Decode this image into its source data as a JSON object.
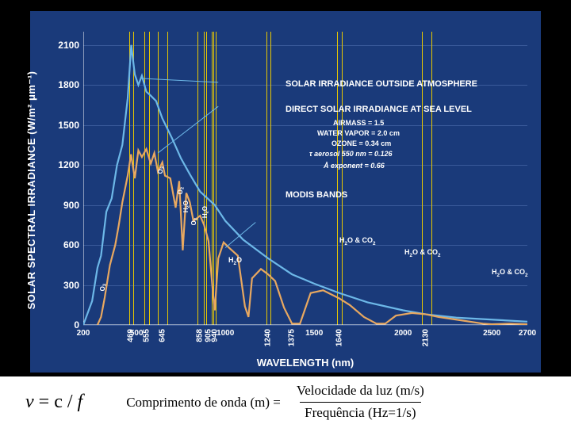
{
  "chart": {
    "type": "line",
    "background_color": "#1a3a7a",
    "page_background": "#000000",
    "grid_color": "#3a5a9a",
    "yaxis": {
      "label": "SOLAR SPECTRAL IRRADIANCE (W/m² μm⁻¹)",
      "ticks": [
        0,
        300,
        600,
        900,
        1200,
        1500,
        1800,
        2100
      ],
      "ylim": [
        0,
        2200
      ]
    },
    "xaxis": {
      "label": "WAVELENGTH (nm)",
      "major_ticks": [
        200,
        500,
        1000,
        1500,
        2000,
        2500,
        2700
      ],
      "minor_labels": [
        469,
        555,
        645,
        858,
        905,
        940,
        1240,
        1375,
        1640,
        2130
      ]
    },
    "series": {
      "outside": {
        "color": "#6db8e8",
        "width": 2.2,
        "points": [
          [
            200,
            0
          ],
          [
            250,
            180
          ],
          [
            280,
            430
          ],
          [
            300,
            520
          ],
          [
            330,
            850
          ],
          [
            360,
            950
          ],
          [
            390,
            1200
          ],
          [
            420,
            1350
          ],
          [
            450,
            1700
          ],
          [
            470,
            2100
          ],
          [
            490,
            1880
          ],
          [
            510,
            1800
          ],
          [
            530,
            1870
          ],
          [
            555,
            1750
          ],
          [
            580,
            1720
          ],
          [
            610,
            1680
          ],
          [
            645,
            1550
          ],
          [
            700,
            1400
          ],
          [
            750,
            1250
          ],
          [
            800,
            1130
          ],
          [
            858,
            1000
          ],
          [
            940,
            900
          ],
          [
            1000,
            780
          ],
          [
            1100,
            640
          ],
          [
            1240,
            500
          ],
          [
            1375,
            380
          ],
          [
            1500,
            310
          ],
          [
            1640,
            240
          ],
          [
            1800,
            170
          ],
          [
            2000,
            110
          ],
          [
            2130,
            80
          ],
          [
            2300,
            55
          ],
          [
            2500,
            40
          ],
          [
            2700,
            25
          ]
        ]
      },
      "sealevel": {
        "color": "#e8a860",
        "width": 2.2,
        "points": [
          [
            280,
            0
          ],
          [
            300,
            60
          ],
          [
            320,
            200
          ],
          [
            350,
            450
          ],
          [
            380,
            600
          ],
          [
            400,
            750
          ],
          [
            420,
            920
          ],
          [
            450,
            1120
          ],
          [
            469,
            1280
          ],
          [
            490,
            1100
          ],
          [
            510,
            1310
          ],
          [
            530,
            1260
          ],
          [
            555,
            1320
          ],
          [
            580,
            1210
          ],
          [
            600,
            1290
          ],
          [
            620,
            1150
          ],
          [
            645,
            1220
          ],
          [
            660,
            1120
          ],
          [
            690,
            1100
          ],
          [
            720,
            880
          ],
          [
            740,
            1080
          ],
          [
            760,
            560
          ],
          [
            780,
            990
          ],
          [
            800,
            920
          ],
          [
            820,
            780
          ],
          [
            858,
            820
          ],
          [
            880,
            750
          ],
          [
            905,
            630
          ],
          [
            930,
            240
          ],
          [
            940,
            110
          ],
          [
            960,
            500
          ],
          [
            990,
            620
          ],
          [
            1020,
            580
          ],
          [
            1070,
            520
          ],
          [
            1110,
            140
          ],
          [
            1130,
            60
          ],
          [
            1150,
            350
          ],
          [
            1200,
            420
          ],
          [
            1240,
            380
          ],
          [
            1280,
            330
          ],
          [
            1330,
            130
          ],
          [
            1375,
            10
          ],
          [
            1420,
            10
          ],
          [
            1480,
            240
          ],
          [
            1550,
            260
          ],
          [
            1640,
            200
          ],
          [
            1700,
            150
          ],
          [
            1780,
            60
          ],
          [
            1850,
            10
          ],
          [
            1900,
            10
          ],
          [
            1960,
            70
          ],
          [
            2050,
            90
          ],
          [
            2130,
            80
          ],
          [
            2200,
            60
          ],
          [
            2300,
            40
          ],
          [
            2450,
            10
          ],
          [
            2500,
            5
          ],
          [
            2600,
            10
          ],
          [
            2700,
            5
          ]
        ]
      }
    },
    "modis_bands": [
      [
        459,
        479
      ],
      [
        545,
        565
      ],
      [
        620,
        670
      ],
      [
        841,
        876
      ],
      [
        890,
        920
      ],
      [
        931,
        941
      ],
      [
        1230,
        1250
      ],
      [
        1628,
        1652
      ],
      [
        2105,
        2155
      ]
    ],
    "modis_color": "#e8c800",
    "annotations": {
      "outside_label": "SOLAR IRRADIANCE OUTSIDE ATMOSPHERE",
      "sealevel_label": "DIRECT SOLAR IRRADIANCE AT SEA LEVEL",
      "params": [
        "AIRMASS = 1.5",
        "WATER VAPOR = 2.0 cm",
        "OZONE = 0.34 cm",
        "τ aerosol 550 nm = 0.126",
        "Å exponent = 0.66"
      ],
      "modis": "MODIS BANDS",
      "absorption": {
        "o3_left": "O₃",
        "o3_right": "O₃",
        "o2_1": "O₂",
        "o2_2": "O₂",
        "h2o_1": "H₂O",
        "h2o_2": "H₂O",
        "h2o_3": "H₂O",
        "band1375": "1375",
        "h2oco2_1": "H₂O & CO₂",
        "h2oco2_2": "H₂O & CO₂",
        "h2oco2_3": "H₂O & CO₂"
      }
    }
  },
  "equation": {
    "formula": "ν = c / f",
    "lhs": "Comprimento de onda (m) =",
    "numerator": "Velocidade da luz (m/s)",
    "denominator": "Frequência (Hz=1/s)"
  }
}
